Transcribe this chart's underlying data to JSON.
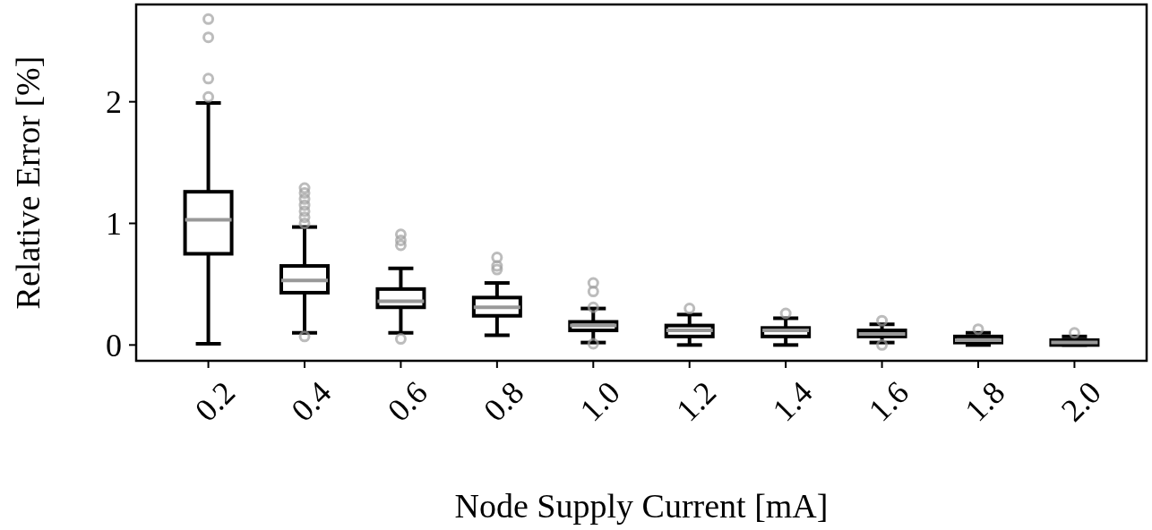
{
  "chart_data": {
    "type": "box",
    "xlabel": "Node Supply Current [mA]",
    "ylabel": "Relative Error [%]",
    "categories": [
      "0.2",
      "0.4",
      "0.6",
      "0.8",
      "1.0",
      "1.2",
      "1.4",
      "1.6",
      "1.8",
      "2.0"
    ],
    "ylim": [
      -0.13,
      2.8
    ],
    "yticks": [
      0,
      1,
      2
    ],
    "boxes": [
      {
        "low": 0.01,
        "q1": 0.75,
        "median": 1.03,
        "q3": 1.26,
        "high": 1.99,
        "outliers": [
          2.04,
          2.19,
          2.53,
          2.68
        ]
      },
      {
        "low": 0.1,
        "q1": 0.43,
        "median": 0.53,
        "q3": 0.65,
        "high": 0.97,
        "outliers": [
          0.07,
          1.0,
          1.05,
          1.1,
          1.15,
          1.2,
          1.25,
          1.29
        ]
      },
      {
        "low": 0.1,
        "q1": 0.31,
        "median": 0.36,
        "q3": 0.46,
        "high": 0.63,
        "outliers": [
          0.05,
          0.82,
          0.86,
          0.91
        ]
      },
      {
        "low": 0.08,
        "q1": 0.24,
        "median": 0.31,
        "q3": 0.39,
        "high": 0.51,
        "outliers": [
          0.62,
          0.65,
          0.72
        ]
      },
      {
        "low": 0.02,
        "q1": 0.12,
        "median": 0.16,
        "q3": 0.19,
        "high": 0.3,
        "outliers": [
          0.01,
          0.31,
          0.44,
          0.51
        ]
      },
      {
        "low": 0.0,
        "q1": 0.07,
        "median": 0.12,
        "q3": 0.16,
        "high": 0.25,
        "outliers": [
          0.3
        ]
      },
      {
        "low": 0.0,
        "q1": 0.07,
        "median": 0.12,
        "q3": 0.14,
        "high": 0.22,
        "outliers": [
          0.26
        ]
      },
      {
        "low": 0.02,
        "q1": 0.07,
        "median": 0.09,
        "q3": 0.12,
        "high": 0.17,
        "outliers": [
          0.0,
          0.2
        ]
      },
      {
        "low": 0.0,
        "q1": 0.02,
        "median": 0.04,
        "q3": 0.07,
        "high": 0.1,
        "outliers": [
          0.13
        ]
      },
      {
        "low": 0.0,
        "q1": 0.0,
        "median": 0.02,
        "q3": 0.04,
        "high": 0.07,
        "outliers": [
          0.1
        ]
      }
    ],
    "color": "#000000"
  }
}
